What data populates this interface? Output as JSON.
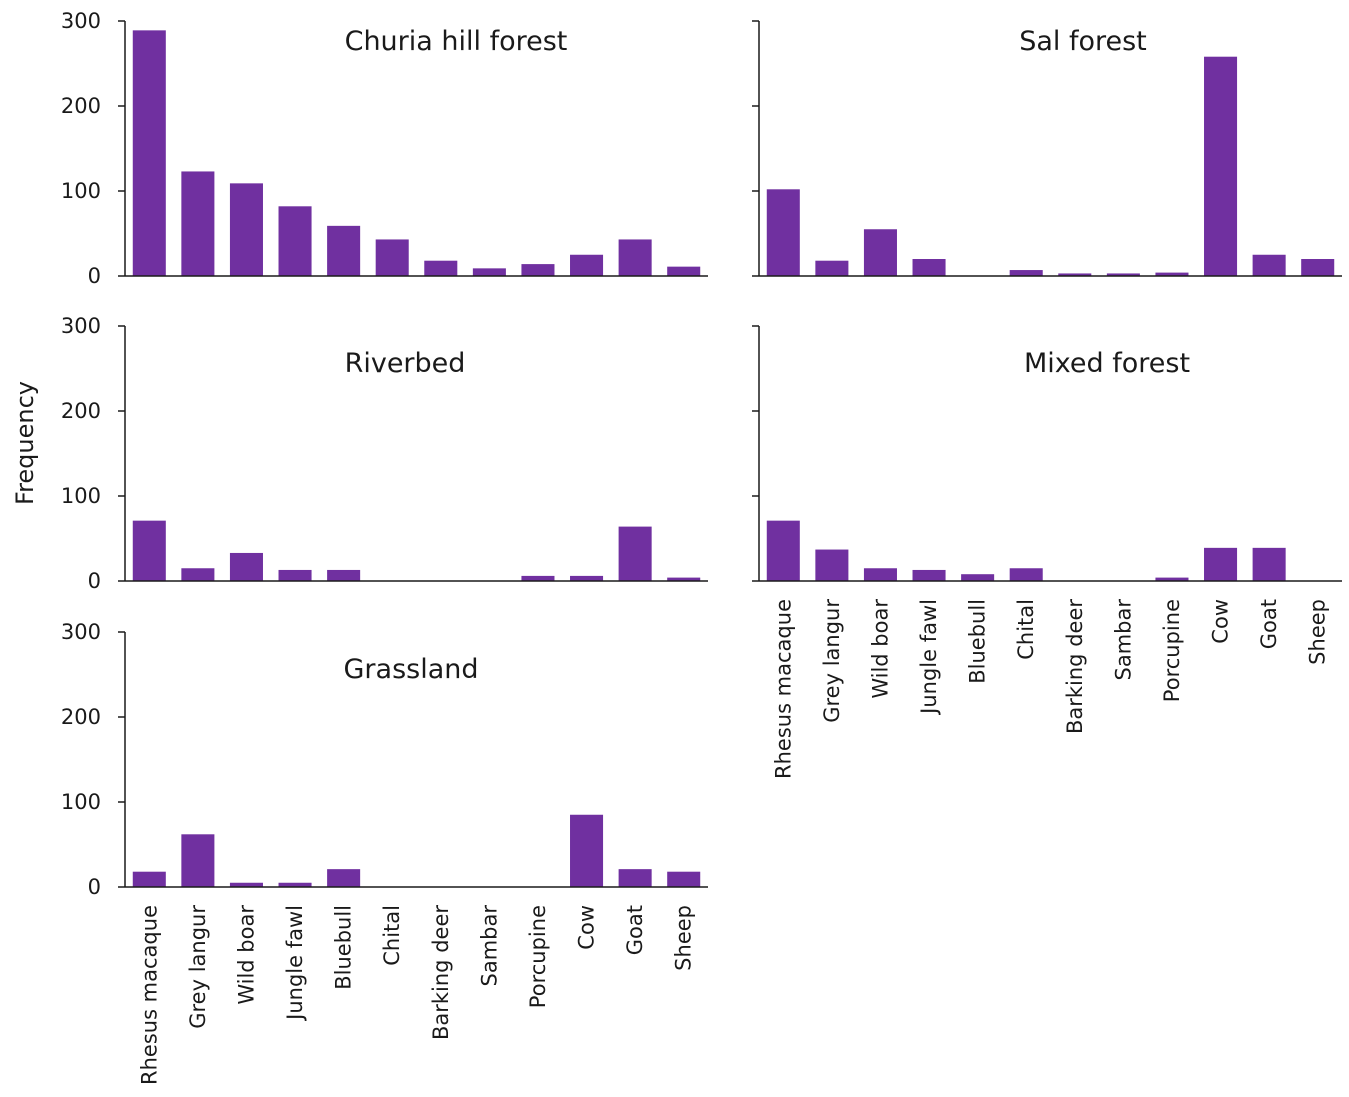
{
  "chart_data": {
    "type": "bar",
    "ylabel": "Frequency",
    "ylim": [
      0,
      300
    ],
    "yticks": [
      "0",
      "100",
      "200",
      "300"
    ],
    "grid": false,
    "bar_color": "#7030a0",
    "categories": [
      "Rhesus macaque",
      "Grey langur",
      "Wild boar",
      "Jungle fawl",
      "Bluebull",
      "Chital",
      "Barking deer",
      "Sambar",
      "Porcupine",
      "Cow",
      "Goat",
      "Sheep"
    ],
    "panels": [
      {
        "title": "Churia hill forest",
        "values": [
          289,
          123,
          109,
          82,
          59,
          43,
          18,
          9,
          14,
          25,
          43,
          11
        ]
      },
      {
        "title": "Sal forest",
        "values": [
          102,
          18,
          55,
          20,
          0,
          7,
          3,
          3,
          4,
          258,
          25,
          20
        ]
      },
      {
        "title": "Riverbed",
        "values": [
          71,
          15,
          33,
          13,
          13,
          0,
          0,
          0,
          6,
          6,
          64,
          4
        ]
      },
      {
        "title": "Mixed forest",
        "values": [
          71,
          37,
          15,
          13,
          8,
          15,
          0,
          0,
          4,
          39,
          39,
          0
        ]
      },
      {
        "title": "Grassland",
        "values": [
          18,
          62,
          5,
          5,
          21,
          0,
          0,
          0,
          0,
          85,
          21,
          18
        ]
      }
    ]
  }
}
